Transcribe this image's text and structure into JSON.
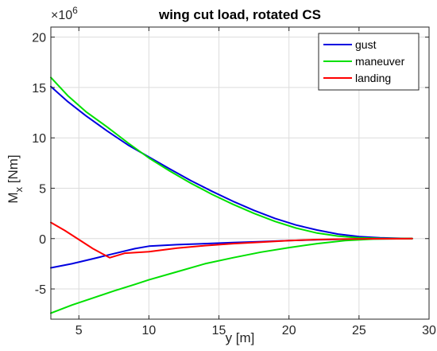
{
  "chart_data": {
    "type": "line",
    "title": "wing cut load, rotated CS",
    "xlabel": "y [m]",
    "ylabel_base": "M",
    "ylabel_sub": "x",
    "ylabel_rest": " [Nm]",
    "y_multiplier_base": "×10",
    "y_multiplier_exp": "6",
    "xlim": [
      3,
      30
    ],
    "ylim": [
      -8,
      21
    ],
    "xticks": [
      5,
      10,
      15,
      20,
      25,
      30
    ],
    "yticks": [
      -5,
      0,
      5,
      10,
      15,
      20
    ],
    "grid": true,
    "legend_position": "top-right",
    "series": [
      {
        "name": "gust",
        "color": "#0000e0",
        "x": [
          3,
          4.2,
          5.5,
          7,
          8.5,
          10,
          11.5,
          13,
          14.5,
          16,
          17.5,
          19,
          20.5,
          22,
          23.5,
          25,
          26.5,
          28,
          28.8
        ],
        "y": [
          15.1,
          13.6,
          12.2,
          10.7,
          9.3,
          8.1,
          6.9,
          5.75,
          4.7,
          3.7,
          2.8,
          2.0,
          1.35,
          0.85,
          0.45,
          0.2,
          0.08,
          0.02,
          0
        ]
      },
      {
        "name": "gust",
        "color": "#0000e0",
        "x": [
          3,
          4.5,
          6,
          7.5,
          9,
          10,
          12,
          14,
          16,
          18,
          20,
          22,
          24,
          26,
          28.8
        ],
        "y": [
          -2.9,
          -2.5,
          -2.0,
          -1.5,
          -1.0,
          -0.75,
          -0.6,
          -0.5,
          -0.4,
          -0.3,
          -0.2,
          -0.12,
          -0.06,
          -0.02,
          0
        ]
      },
      {
        "name": "maneuver",
        "color": "#00e000",
        "x": [
          3,
          4.2,
          5.5,
          7,
          8.5,
          10,
          11.5,
          13,
          14.5,
          16,
          17.5,
          19,
          20.5,
          22,
          23.5,
          25,
          26.5,
          28,
          28.8
        ],
        "y": [
          16.0,
          14.2,
          12.6,
          11.1,
          9.5,
          8.0,
          6.7,
          5.5,
          4.4,
          3.4,
          2.5,
          1.7,
          1.05,
          0.55,
          0.25,
          0.08,
          0.02,
          0.005,
          0
        ]
      },
      {
        "name": "maneuver",
        "color": "#00e000",
        "x": [
          3,
          4.5,
          6,
          7.5,
          9,
          10,
          12,
          14,
          16,
          18,
          20,
          22,
          24,
          26,
          28.8
        ],
        "y": [
          -7.4,
          -6.6,
          -5.9,
          -5.2,
          -4.55,
          -4.1,
          -3.3,
          -2.5,
          -1.9,
          -1.35,
          -0.9,
          -0.5,
          -0.2,
          -0.05,
          0
        ]
      },
      {
        "name": "landing",
        "color": "#ff0000",
        "x": [
          3,
          4,
          5,
          6,
          7.2,
          8.3,
          10,
          12,
          14,
          16,
          18,
          20,
          22,
          24,
          26,
          28.8
        ],
        "y": [
          1.6,
          0.8,
          -0.1,
          -1.0,
          -1.9,
          -1.45,
          -1.3,
          -0.95,
          -0.7,
          -0.5,
          -0.35,
          -0.2,
          -0.1,
          -0.05,
          -0.02,
          0
        ]
      }
    ],
    "legend": [
      {
        "name": "gust",
        "color": "#0000e0"
      },
      {
        "name": "maneuver",
        "color": "#00e000"
      },
      {
        "name": "landing",
        "color": "#ff0000"
      }
    ]
  }
}
